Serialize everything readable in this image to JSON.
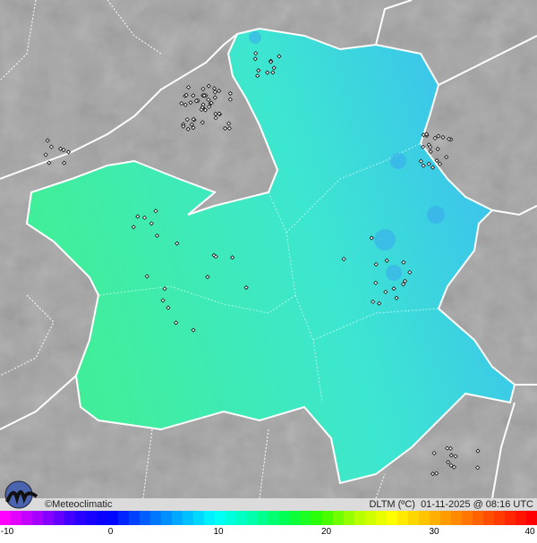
{
  "map": {
    "credit": "©Meteoclimatic",
    "variable": "DLTM (ºC)",
    "date": "01-11-2025",
    "time": "08:16 UTC",
    "colors": {
      "background": "#a3a3a3",
      "region_green": "#40ee9a",
      "region_cyan": "#3de6d0",
      "region_blue": "#3cc4ec",
      "border": "#ffffff"
    }
  },
  "legend": {
    "ticks": [
      "-10",
      "0",
      "10",
      "20",
      "30",
      "40"
    ],
    "range": [
      -10,
      40
    ],
    "colors": [
      "#ff00ff",
      "#a000ff",
      "#3000ff",
      "#0000ff",
      "#0060ff",
      "#00b0ff",
      "#00ffff",
      "#00ffb0",
      "#00ff50",
      "#30ff00",
      "#b0ff00",
      "#ffff00",
      "#ffc000",
      "#ff8000",
      "#ff4000",
      "#ff0000"
    ]
  }
}
